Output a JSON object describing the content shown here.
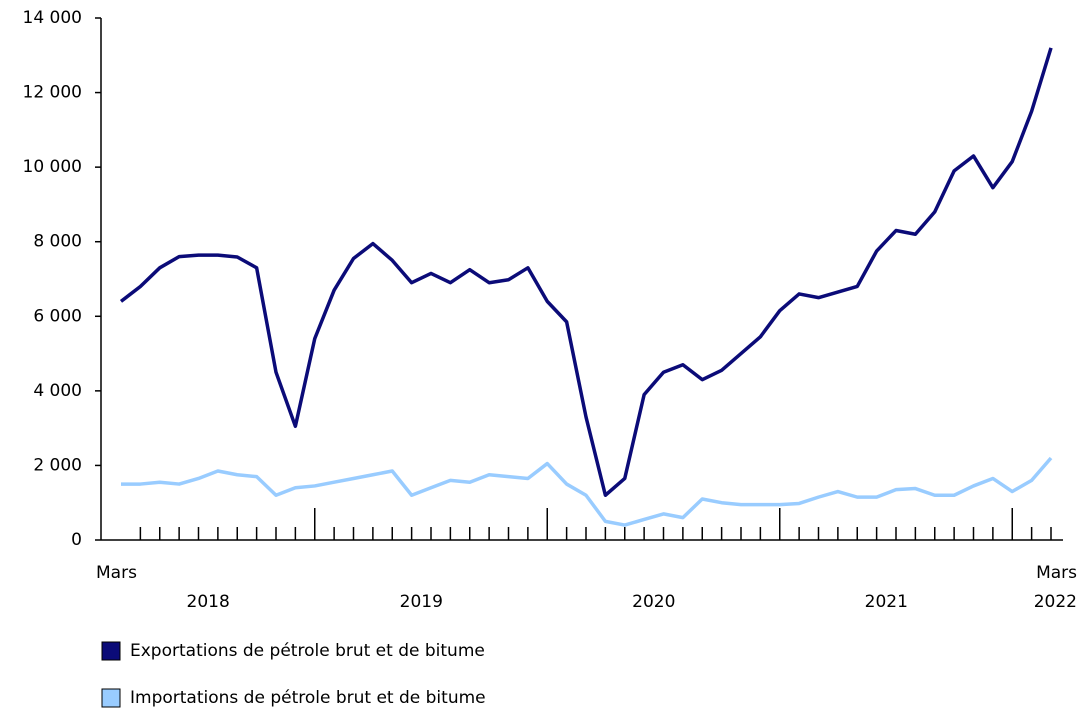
{
  "chart_data": {
    "type": "line",
    "categories": [
      "Mars",
      null,
      null,
      null,
      null,
      null,
      null,
      null,
      null,
      null,
      null,
      null,
      null,
      null,
      null,
      null,
      null,
      null,
      null,
      null,
      null,
      null,
      null,
      null,
      null,
      null,
      null,
      null,
      null,
      null,
      null,
      null,
      null,
      null,
      null,
      null,
      null,
      null,
      null,
      null,
      null,
      null,
      null,
      null,
      null,
      null,
      null,
      null,
      "Mars"
    ],
    "year_groups": [
      {
        "label": "2018",
        "count": 10
      },
      {
        "label": "2019",
        "count": 12
      },
      {
        "label": "2020",
        "count": 12
      },
      {
        "label": "2021",
        "count": 12
      },
      {
        "label": "2022",
        "count": 3
      }
    ],
    "series": [
      {
        "name": "Exportations de pétrole brut et de bitume",
        "color": "#0b0b78",
        "values": [
          6400,
          6800,
          7300,
          7600,
          7640,
          7640,
          7590,
          7300,
          4500,
          3050,
          5400,
          6700,
          7550,
          7950,
          7500,
          6900,
          7150,
          6900,
          7250,
          6900,
          6980,
          7300,
          6400,
          5850,
          3300,
          1200,
          1650,
          3900,
          4500,
          4700,
          4300,
          4550,
          5000,
          5450,
          6150,
          6600,
          6500,
          6650,
          6800,
          7750,
          8300,
          8200,
          8800,
          9900,
          10300,
          9450,
          10150,
          11500,
          13200
        ]
      },
      {
        "name": "Importations de pétrole brut et de bitume",
        "color": "#99ccff",
        "values": [
          1500,
          1500,
          1550,
          1500,
          1650,
          1850,
          1750,
          1700,
          1200,
          1400,
          1450,
          1550,
          1650,
          1750,
          1850,
          1200,
          1400,
          1600,
          1550,
          1750,
          1700,
          1650,
          2050,
          1500,
          1200,
          500,
          400,
          550,
          700,
          600,
          1100,
          1000,
          950,
          950,
          950,
          980,
          1150,
          1300,
          1150,
          1150,
          1350,
          1380,
          1200,
          1200,
          1450,
          1650,
          1300,
          1600,
          2200
        ]
      }
    ],
    "ylim": [
      0,
      14000
    ],
    "yticks": [
      0,
      {
        "value": 2000,
        "label": "2 000"
      },
      {
        "value": 4000,
        "label": "4 000"
      },
      {
        "value": 6000,
        "label": "6 000"
      },
      {
        "value": 8000,
        "label": "8 000"
      },
      {
        "value": 10000,
        "label": "10 000"
      },
      {
        "value": 12000,
        "label": "12 000"
      },
      {
        "value": 14000,
        "label": "14 000"
      }
    ]
  }
}
